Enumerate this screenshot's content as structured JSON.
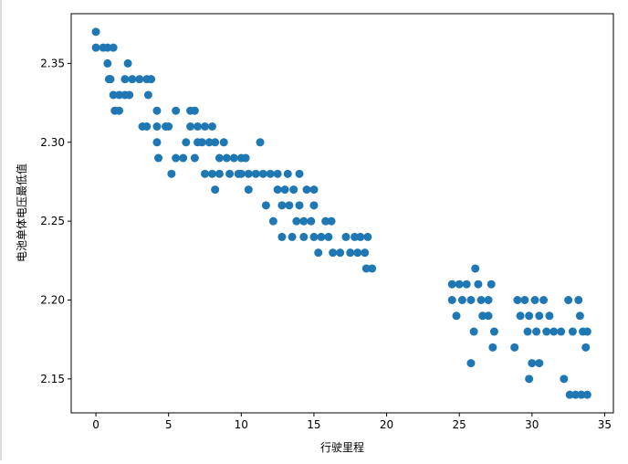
{
  "chart_data": {
    "type": "scatter",
    "xlabel": "行驶里程",
    "ylabel": "电池单体电压最低值",
    "color": "#1f77b4",
    "xlim": [
      -1.7,
      35.6
    ],
    "ylim": [
      2.1285,
      2.3815
    ],
    "xticks": [
      0,
      5,
      10,
      15,
      20,
      25,
      30,
      35
    ],
    "yticks": [
      2.15,
      {
        "value": 2.2,
        "label": "2.20"
      },
      2.25,
      {
        "value": 2.3,
        "label": "2.30"
      },
      2.35
    ],
    "x": [
      0,
      0,
      0.5,
      0.8,
      1.2,
      0.8,
      0.9,
      1.0,
      1.2,
      1.3,
      1.6,
      1.6,
      2.0,
      2.3,
      2.2,
      2.0,
      2.5,
      3.0,
      3.5,
      3.8,
      3.6,
      3.2,
      3.5,
      4.2,
      4.2,
      4.2,
      4.3,
      4.8,
      5.0,
      5.2,
      5.5,
      5.5,
      6.0,
      6.2,
      6.5,
      6.5,
      6.8,
      6.8,
      7.0,
      7.0,
      7.3,
      7.5,
      7.8,
      8.0,
      8.2,
      7.5,
      8.0,
      8.2,
      8.5,
      8.5,
      8.8,
      9.0,
      9.2,
      9.5,
      9.8,
      10,
      10,
      10.3,
      10.5,
      10.5,
      11,
      11.3,
      11.5,
      11.7,
      12,
      12.2,
      12.5,
      12.5,
      12.8,
      12.8,
      13,
      13.2,
      13.3,
      13.5,
      13.6,
      13.8,
      14,
      14,
      14.3,
      14.5,
      14.3,
      14.8,
      15,
      15,
      15,
      15.3,
      15.5,
      15.8,
      16,
      16.2,
      16.3,
      16.8,
      17.2,
      17.5,
      17.8,
      18,
      18.2,
      18.5,
      18.6,
      18.7,
      19,
      24.5,
      24.5,
      24.8,
      25,
      25.2,
      25.5,
      25.8,
      25.8,
      26,
      26.1,
      26.3,
      26.5,
      26.6,
      27,
      27,
      27.2,
      27.3,
      27.4,
      28.8,
      29,
      29.2,
      29.5,
      29.7,
      29.8,
      29.8,
      30,
      30.2,
      30.3,
      30.5,
      30.5,
      30.8,
      31,
      31.2,
      31.5,
      32,
      32.2,
      32.5,
      32.6,
      32.8,
      33,
      33.2,
      33.3,
      33.4,
      33.5,
      33.7,
      33.8,
      33.8
    ],
    "y": [
      2.37,
      2.36,
      2.36,
      2.36,
      2.36,
      2.35,
      2.34,
      2.34,
      2.33,
      2.32,
      2.32,
      2.33,
      2.33,
      2.33,
      2.35,
      2.34,
      2.34,
      2.34,
      2.34,
      2.34,
      2.33,
      2.31,
      2.31,
      2.32,
      2.31,
      2.3,
      2.29,
      2.31,
      2.31,
      2.28,
      2.32,
      2.29,
      2.29,
      2.3,
      2.31,
      2.32,
      2.32,
      2.29,
      2.31,
      2.3,
      2.3,
      2.31,
      2.3,
      2.31,
      2.3,
      2.28,
      2.28,
      2.27,
      2.28,
      2.29,
      2.3,
      2.29,
      2.28,
      2.29,
      2.28,
      2.29,
      2.28,
      2.29,
      2.27,
      2.28,
      2.28,
      2.3,
      2.28,
      2.26,
      2.28,
      2.25,
      2.27,
      2.28,
      2.26,
      2.24,
      2.27,
      2.28,
      2.26,
      2.24,
      2.27,
      2.25,
      2.26,
      2.28,
      2.25,
      2.27,
      2.24,
      2.25,
      2.27,
      2.26,
      2.24,
      2.23,
      2.24,
      2.25,
      2.24,
      2.25,
      2.23,
      2.23,
      2.24,
      2.23,
      2.24,
      2.23,
      2.24,
      2.23,
      2.22,
      2.24,
      2.22,
      2.21,
      2.2,
      2.19,
      2.21,
      2.2,
      2.21,
      2.16,
      2.2,
      2.18,
      2.22,
      2.21,
      2.2,
      2.19,
      2.19,
      2.2,
      2.21,
      2.17,
      2.18,
      2.17,
      2.2,
      2.19,
      2.2,
      2.18,
      2.15,
      2.19,
      2.16,
      2.2,
      2.18,
      2.19,
      2.16,
      2.2,
      2.18,
      2.19,
      2.18,
      2.18,
      2.15,
      2.2,
      2.14,
      2.18,
      2.14,
      2.2,
      2.19,
      2.14,
      2.18,
      2.17,
      2.18,
      2.14
    ]
  }
}
